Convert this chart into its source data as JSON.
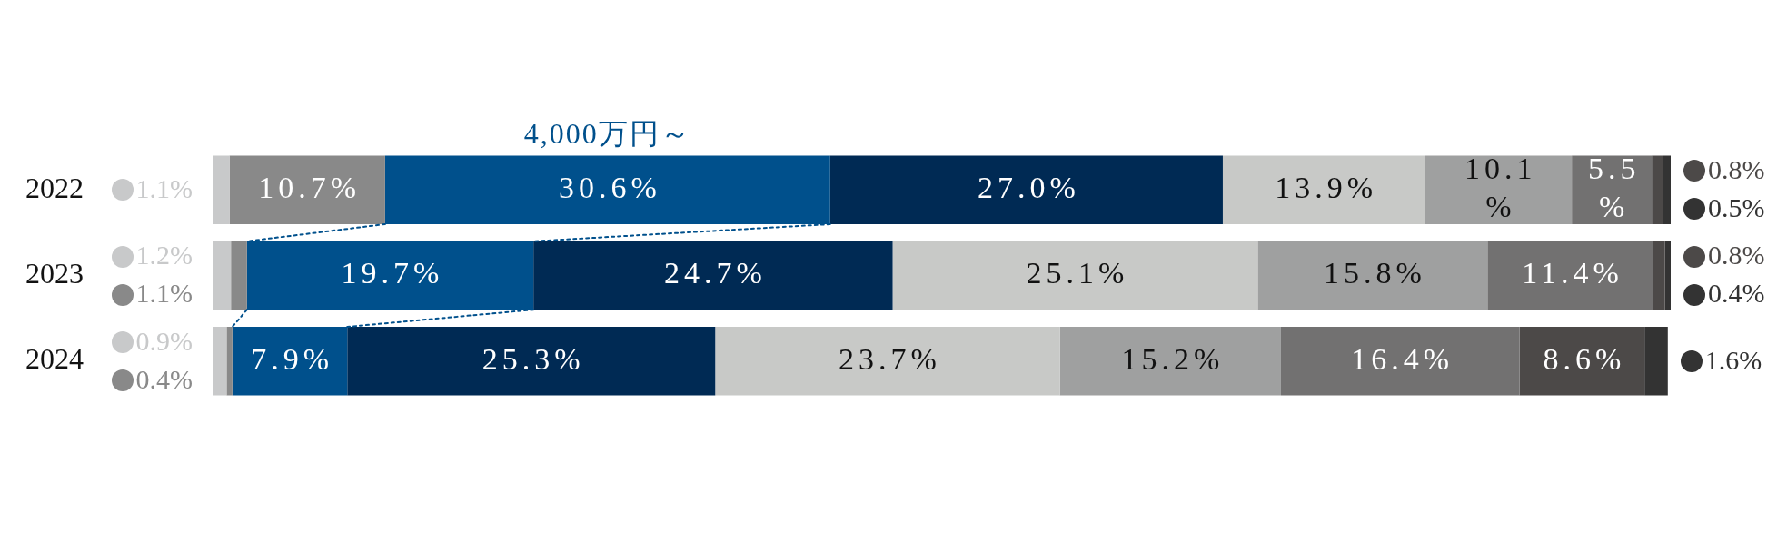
{
  "chart_data": {
    "type": "bar",
    "orientation": "horizontal",
    "stacked": true,
    "tick_labels": "y",
    "categories": [
      "2022",
      "2023",
      "2024"
    ],
    "xlim": [
      0,
      100.2
    ],
    "annotations": [
      {
        "text": "4,000万円～",
        "x": 27.1,
        "y": "2022"
      }
    ],
    "series": [
      {
        "color": "#c8c9ca",
        "values": [
          1.1,
          1.2,
          0.9
        ],
        "value_labels": [
          "1.1%",
          "1.2%",
          "0.9%"
        ]
      },
      {
        "color": "#898989",
        "values": [
          10.7,
          1.1,
          0.4
        ],
        "value_labels": [
          "10.7%",
          "1.1%",
          "0.4%"
        ]
      },
      {
        "color": "#00508c",
        "values": [
          30.6,
          19.7,
          7.9
        ],
        "value_labels": [
          "30.6%",
          "19.7%",
          "7.9%"
        ]
      },
      {
        "color": "#002a54",
        "values": [
          27.0,
          24.7,
          25.3
        ],
        "value_labels": [
          "27.0%",
          "24.7%",
          "25.3%"
        ]
      },
      {
        "color": "#c8c9c7",
        "values": [
          13.9,
          25.1,
          23.7
        ],
        "value_labels": [
          "13.9%",
          "25.1%",
          "23.7%"
        ]
      },
      {
        "color": "#9fa0a0",
        "values": [
          10.1,
          15.8,
          15.2
        ],
        "value_labels": [
          "10.1\n%",
          "15.8%",
          "15.2%"
        ]
      },
      {
        "color": "#727171",
        "values": [
          5.5,
          11.4,
          16.4
        ],
        "value_labels": [
          "5.5\n%",
          "11.4%",
          "16.4%"
        ]
      },
      {
        "color": "#4c4948",
        "values": [
          0.8,
          0.8,
          8.6
        ],
        "value_labels": [
          "0.8%",
          "0.8%",
          "8.6%"
        ]
      },
      {
        "color": "#333333",
        "values": [
          0.5,
          0.4,
          1.6
        ],
        "value_labels": [
          "0.5%",
          "0.4%",
          "1.6%"
        ]
      }
    ]
  }
}
